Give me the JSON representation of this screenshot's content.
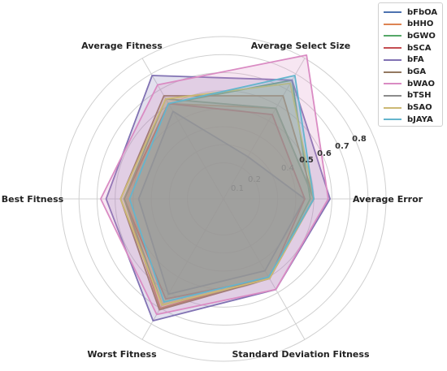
{
  "chart_data": {
    "type": "radar",
    "axes": [
      "Average Error",
      "Average Select Size",
      "Average Fitness",
      "Best Fitness",
      "Worst Fitness",
      "Standard Deviation Fitness"
    ],
    "tick_labels": [
      "0.1",
      "0.2",
      "0.4",
      "0.5",
      "0.6",
      "0.7",
      "0.8"
    ],
    "rlim": [
      0,
      0.9
    ],
    "grid": true,
    "legend_position": "top-right",
    "series": [
      {
        "name": "bFbOA",
        "color": "#4c72b0",
        "values": [
          0.45,
          0.27,
          0.56,
          0.47,
          0.61,
          0.46
        ]
      },
      {
        "name": "bHHO",
        "color": "#dd8452",
        "values": [
          0.5,
          0.58,
          0.61,
          0.55,
          0.7,
          0.5
        ]
      },
      {
        "name": "bGWO",
        "color": "#55a868",
        "values": [
          0.48,
          0.76,
          0.61,
          0.55,
          0.64,
          0.51
        ]
      },
      {
        "name": "bSCA",
        "color": "#c44e52",
        "values": [
          0.45,
          0.54,
          0.61,
          0.55,
          0.64,
          0.51
        ]
      },
      {
        "name": "bFA",
        "color": "#8172b3",
        "values": [
          0.59,
          0.76,
          0.79,
          0.65,
          0.78,
          0.58
        ]
      },
      {
        "name": "bGA",
        "color": "#937860",
        "values": [
          0.5,
          0.66,
          0.66,
          0.57,
          0.71,
          0.51
        ]
      },
      {
        "name": "bWAO",
        "color": "#da8bc3",
        "values": [
          0.58,
          0.92,
          0.73,
          0.68,
          0.74,
          0.58
        ]
      },
      {
        "name": "bTSH",
        "color": "#8c8c8c",
        "values": [
          0.5,
          0.58,
          0.64,
          0.55,
          0.68,
          0.51
        ]
      },
      {
        "name": "bSAO",
        "color": "#ccb974",
        "values": [
          0.5,
          0.74,
          0.64,
          0.57,
          0.68,
          0.51
        ]
      },
      {
        "name": "bJAYA",
        "color": "#64b5cd",
        "values": [
          0.5,
          0.79,
          0.61,
          0.52,
          0.66,
          0.5
        ]
      }
    ]
  }
}
